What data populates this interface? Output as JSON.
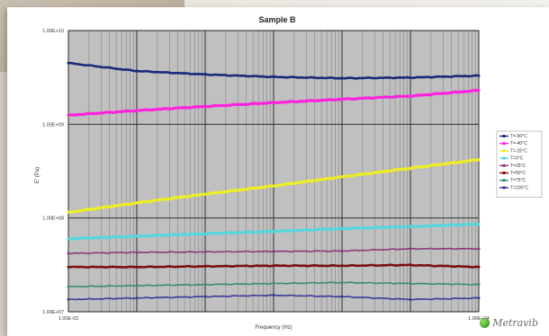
{
  "brand": {
    "name": "Metravib",
    "icon": "metravib-logo-icon"
  },
  "chart_data": {
    "type": "line",
    "title": "Sample B",
    "xlabel": "Frequency (Hz)",
    "ylabel": "E' (Pa)",
    "xscale": "log",
    "yscale": "log",
    "xlim": [
      0.01,
      10000
    ],
    "ylim": [
      10000000,
      10000000000
    ],
    "x_ticks": [
      {
        "value": 0.01,
        "label": "1.00E-02"
      },
      {
        "value": 10000,
        "label": "1.00E+04"
      }
    ],
    "y_ticks": [
      {
        "value": 10000000,
        "label": "1.00E+07"
      },
      {
        "value": 100000000,
        "label": "1.00E+08"
      },
      {
        "value": 1000000000,
        "label": "1.00E+09"
      },
      {
        "value": 10000000000,
        "label": "1.00E+10"
      }
    ],
    "grid": true,
    "legend_position": "right",
    "x": [
      0.01,
      0.1,
      1,
      10,
      100,
      1000,
      10000
    ],
    "series": [
      {
        "name": "T=-50°C",
        "color": "#1a2a7a",
        "marker": "diamond",
        "values": [
          4500000000.0,
          3700000000.0,
          3400000000.0,
          3200000000.0,
          3100000000.0,
          3150000000.0,
          3300000000.0
        ]
      },
      {
        "name": "T=-40°C",
        "color": "#ff22dd",
        "marker": "square",
        "values": [
          1250000000.0,
          1400000000.0,
          1550000000.0,
          1700000000.0,
          1850000000.0,
          2000000000.0,
          2300000000.0
        ]
      },
      {
        "name": "T=-25°C",
        "color": "#eeee22",
        "marker": "triangle",
        "values": [
          115000000.0,
          145000000.0,
          180000000.0,
          220000000.0,
          275000000.0,
          340000000.0,
          420000000.0
        ]
      },
      {
        "name": "T=0°C",
        "color": "#55d6dd",
        "marker": "x",
        "values": [
          60000000.0,
          64000000.0,
          68000000.0,
          72000000.0,
          77000000.0,
          81000000.0,
          86000000.0
        ]
      },
      {
        "name": "T=25°C",
        "color": "#8a3a7a",
        "marker": "star",
        "values": [
          42000000.0,
          43000000.0,
          43500000.0,
          44000000.0,
          44500000.0,
          47000000.0,
          47000000.0
        ]
      },
      {
        "name": "T=50°C",
        "color": "#7a1010",
        "marker": "circle",
        "values": [
          30000000.0,
          30000000.0,
          30500000.0,
          31000000.0,
          31000000.0,
          31500000.0,
          30000000.0
        ]
      },
      {
        "name": "T=75°C",
        "color": "#3a8a7a",
        "marker": "plus",
        "values": [
          18500000.0,
          19000000.0,
          19500000.0,
          20000000.0,
          20500000.0,
          20000000.0,
          19500000.0
        ]
      },
      {
        "name": "T=100°C",
        "color": "#3a3a9a",
        "marker": "line",
        "values": [
          13500000.0,
          14000000.0,
          14500000.0,
          15000000.0,
          14500000.0,
          13500000.0,
          14000000.0
        ]
      }
    ]
  }
}
